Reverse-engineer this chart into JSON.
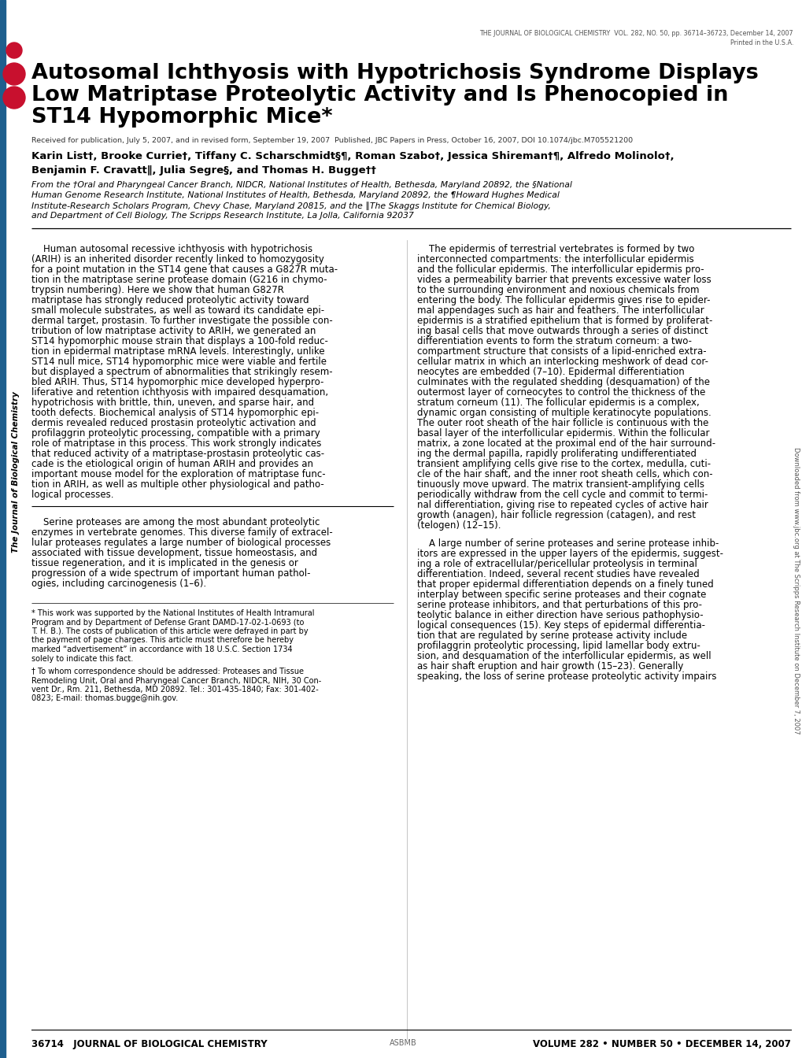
{
  "background_color": "#ffffff",
  "page_width": 10.2,
  "page_height": 13.44,
  "left_bar_color": "#1e5f8e",
  "journal_header": "THE JOURNAL OF BIOLOGICAL CHEMISTRY  VOL. 282, NO. 50, pp. 36714–36723, December 14, 2007",
  "journal_header2": "Printed in the U.S.A.",
  "main_title_line1": "Autosomal Ichthyosis with Hypotrichosis Syndrome Displays",
  "main_title_line2": "Low Matriptase Proteolytic Activity and Is Phenocopied in",
  "main_title_line3": "ST14 Hypomorphic Mice*",
  "received_line": "Received for publication, July 5, 2007, and in revised form, September 19, 2007  Published, JBC Papers in Press, October 16, 2007, DOI 10.1074/jbc.M705521200",
  "authors_line1": "Karin List†, Brooke Currie†, Tiffany C. Scharschmidt§¶, Roman Szabo†, Jessica Shireman†¶, Alfredo Molinolo†,",
  "authors_line2": "Benjamin F. Cravatt∥, Julia Segre§, and Thomas H. Bugge††",
  "affil_lines": [
    "From the †Oral and Pharyngeal Cancer Branch, NIDCR, National Institutes of Health, Bethesda, Maryland 20892, the §National",
    "Human Genome Research Institute, National Institutes of Health, Bethesda, Maryland 20892, the ¶Howard Hughes Medical",
    "Institute-Research Scholars Program, Chevy Chase, Maryland 20815, and the ∥The Skaggs Institute for Chemical Biology,",
    "and Department of Cell Biology, The Scripps Research Institute, La Jolla, California 92037"
  ],
  "abs_left_lines": [
    "    Human autosomal recessive ichthyosis with hypotrichosis",
    "(ARIH) is an inherited disorder recently linked to homozygosity",
    "for a point mutation in the ST14 gene that causes a G827R muta-",
    "tion in the matriptase serine protease domain (G216 in chymo-",
    "trypsin numbering). Here we show that human G827R",
    "matriptase has strongly reduced proteolytic activity toward",
    "small molecule substrates, as well as toward its candidate epi-",
    "dermal target, prostasin. To further investigate the possible con-",
    "tribution of low matriptase activity to ARIH, we generated an",
    "ST14 hypomorphic mouse strain that displays a 100-fold reduc-",
    "tion in epidermal matriptase mRNA levels. Interestingly, unlike",
    "ST14 null mice, ST14 hypomorphic mice were viable and fertile",
    "but displayed a spectrum of abnormalities that strikingly resem-",
    "bled ARIH. Thus, ST14 hypomorphic mice developed hyperpro-",
    "liferative and retention ichthyosis with impaired desquamation,",
    "hypotrichosis with brittle, thin, uneven, and sparse hair, and",
    "tooth defects. Biochemical analysis of ST14 hypomorphic epi-",
    "dermis revealed reduced prostasin proteolytic activation and",
    "profilaggrin proteolytic processing, compatible with a primary",
    "role of matriptase in this process. This work strongly indicates",
    "that reduced activity of a matriptase-prostasin proteolytic cas-",
    "cade is the etiological origin of human ARIH and provides an",
    "important mouse model for the exploration of matriptase func-",
    "tion in ARIH, as well as multiple other physiological and patho-",
    "logical processes."
  ],
  "intro_left_lines": [
    "    Serine proteases are among the most abundant proteolytic",
    "enzymes in vertebrate genomes. This diverse family of extracel-",
    "lular proteases regulates a large number of biological processes",
    "associated with tissue development, tissue homeostasis, and",
    "tissue regeneration, and it is implicated in the genesis or",
    "progression of a wide spectrum of important human pathol-",
    "ogies, including carcinogenesis (1–6)."
  ],
  "fn1_lines": [
    "* This work was supported by the National Institutes of Health Intramural",
    "Program and by Department of Defense Grant DAMD-17-02-1-0693 (to",
    "T. H. B.). The costs of publication of this article were defrayed in part by",
    "the payment of page charges. This article must therefore be hereby",
    "marked “advertisement” in accordance with 18 U.S.C. Section 1734",
    "solely to indicate this fact."
  ],
  "fn2_lines": [
    "† To whom correspondence should be addressed: Proteases and Tissue",
    "Remodeling Unit, Oral and Pharyngeal Cancer Branch, NIDCR, NIH, 30 Con-",
    "vent Dr., Rm. 211, Bethesda, MD 20892. Tel.: 301-435-1840; Fax: 301-402-",
    "0823; E-mail: thomas.bugge@nih.gov."
  ],
  "right_lines1": [
    "    The epidermis of terrestrial vertebrates is formed by two",
    "interconnected compartments: the interfollicular epidermis",
    "and the follicular epidermis. The interfollicular epidermis pro-",
    "vides a permeability barrier that prevents excessive water loss",
    "to the surrounding environment and noxious chemicals from",
    "entering the body. The follicular epidermis gives rise to epider-",
    "mal appendages such as hair and feathers. The interfollicular",
    "epidermis is a stratified epithelium that is formed by proliferat-",
    "ing basal cells that move outwards through a series of distinct",
    "differentiation events to form the stratum corneum: a two-",
    "compartment structure that consists of a lipid-enriched extra-",
    "cellular matrix in which an interlocking meshwork of dead cor-",
    "neocytes are embedded (7–10). Epidermal differentiation",
    "culminates with the regulated shedding (desquamation) of the",
    "outermost layer of corneocytes to control the thickness of the",
    "stratum corneum (11). The follicular epidermis is a complex,",
    "dynamic organ consisting of multiple keratinocyte populations.",
    "The outer root sheath of the hair follicle is continuous with the",
    "basal layer of the interfollicular epidermis. Within the follicular",
    "matrix, a zone located at the proximal end of the hair surround-",
    "ing the dermal papilla, rapidly proliferating undifferentiated",
    "transient amplifying cells give rise to the cortex, medulla, cuti-",
    "cle of the hair shaft, and the inner root sheath cells, which con-",
    "tinuously move upward. The matrix transient-amplifying cells",
    "periodically withdraw from the cell cycle and commit to termi-",
    "nal differentiation, giving rise to repeated cycles of active hair",
    "growth (anagen), hair follicle regression (catagen), and rest",
    "(telogen) (12–15)."
  ],
  "right_lines2": [
    "    A large number of serine proteases and serine protease inhib-",
    "itors are expressed in the upper layers of the epidermis, suggest-",
    "ing a role of extracellular/pericellular proteolysis in terminal",
    "differentiation. Indeed, several recent studies have revealed",
    "that proper epidermal differentiation depends on a finely tuned",
    "interplay between specific serine proteases and their cognate",
    "serine protease inhibitors, and that perturbations of this pro-",
    "teolytic balance in either direction have serious pathophysio-",
    "logical consequences (15). Key steps of epidermal differentia-",
    "tion that are regulated by serine protease activity include",
    "profilaggrin proteolytic processing, lipid lamellar body extru-",
    "sion, and desquamation of the interfollicular epidermis, as well",
    "as hair shaft eruption and hair growth (15–23). Generally",
    "speaking, the loss of serine protease proteolytic activity impairs"
  ],
  "footer_left": "36714   JOURNAL OF BIOLOGICAL CHEMISTRY",
  "footer_center_text": "ASBMB",
  "footer_right": "VOLUME 282 • NUMBER 50 • DECEMBER 14, 2007",
  "side_text_right": "Downloaded from www.jbc.org at The Scripps Research Institute on December 7, 2007",
  "side_text_left": "The Journal of Biological Chemistry"
}
